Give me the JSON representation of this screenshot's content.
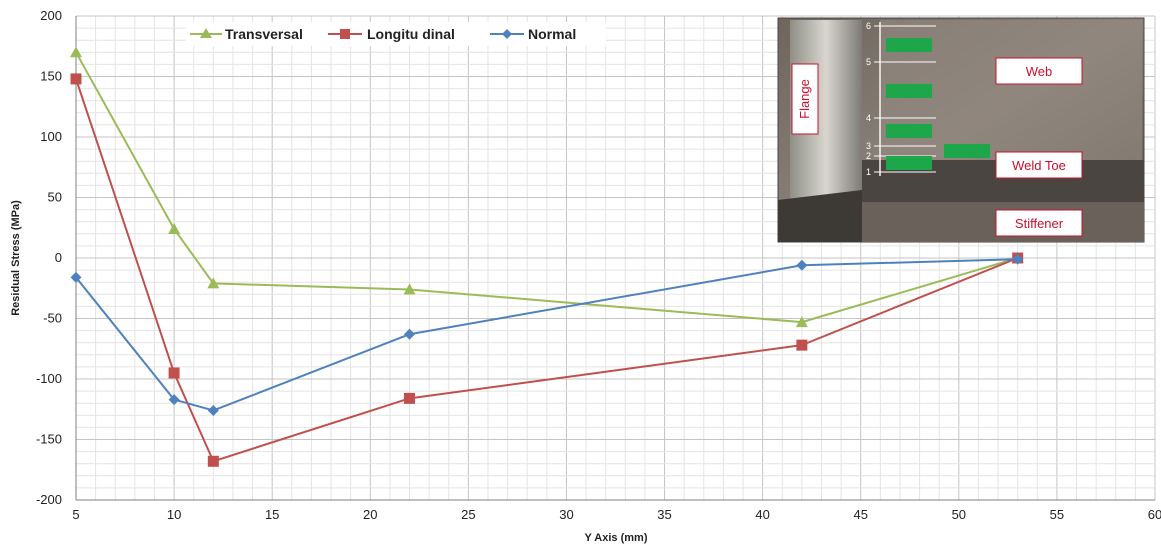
{
  "chart_data": {
    "type": "line",
    "xlabel": "Y Axis (mm)",
    "ylabel": "Residual Stress (MPa)",
    "xlim": [
      5,
      60
    ],
    "ylim": [
      -200,
      200
    ],
    "x_ticks": [
      5,
      10,
      15,
      20,
      25,
      30,
      35,
      40,
      45,
      50,
      55,
      60
    ],
    "y_ticks": [
      200,
      150,
      100,
      50,
      0,
      -50,
      -100,
      -150,
      -200
    ],
    "grid": true,
    "legend_position": "top",
    "series": [
      {
        "name": "Transversal",
        "color": "#9bbb59",
        "marker": "triangle",
        "x": [
          5,
          10,
          12,
          22,
          42,
          53
        ],
        "y": [
          170,
          24,
          -21,
          -26,
          -53,
          0
        ]
      },
      {
        "name": "Longitu dinal",
        "color": "#c0504d",
        "marker": "square",
        "x": [
          5,
          10,
          12,
          22,
          42,
          53
        ],
        "y": [
          148,
          -95,
          -168,
          -116,
          -72,
          0
        ]
      },
      {
        "name": "Normal",
        "color": "#4f81bd",
        "marker": "diamond",
        "x": [
          5,
          10,
          12,
          22,
          42,
          53
        ],
        "y": [
          -16,
          -117,
          -126,
          -63,
          -6,
          -1
        ]
      }
    ]
  },
  "inset": {
    "labels": {
      "flange": "Flange",
      "web": "Web",
      "weld_toe": "Weld Toe",
      "stiffener": "Stiffener"
    },
    "ruler_numbers": [
      "6",
      "5",
      "4",
      "3",
      "2",
      "1"
    ]
  }
}
